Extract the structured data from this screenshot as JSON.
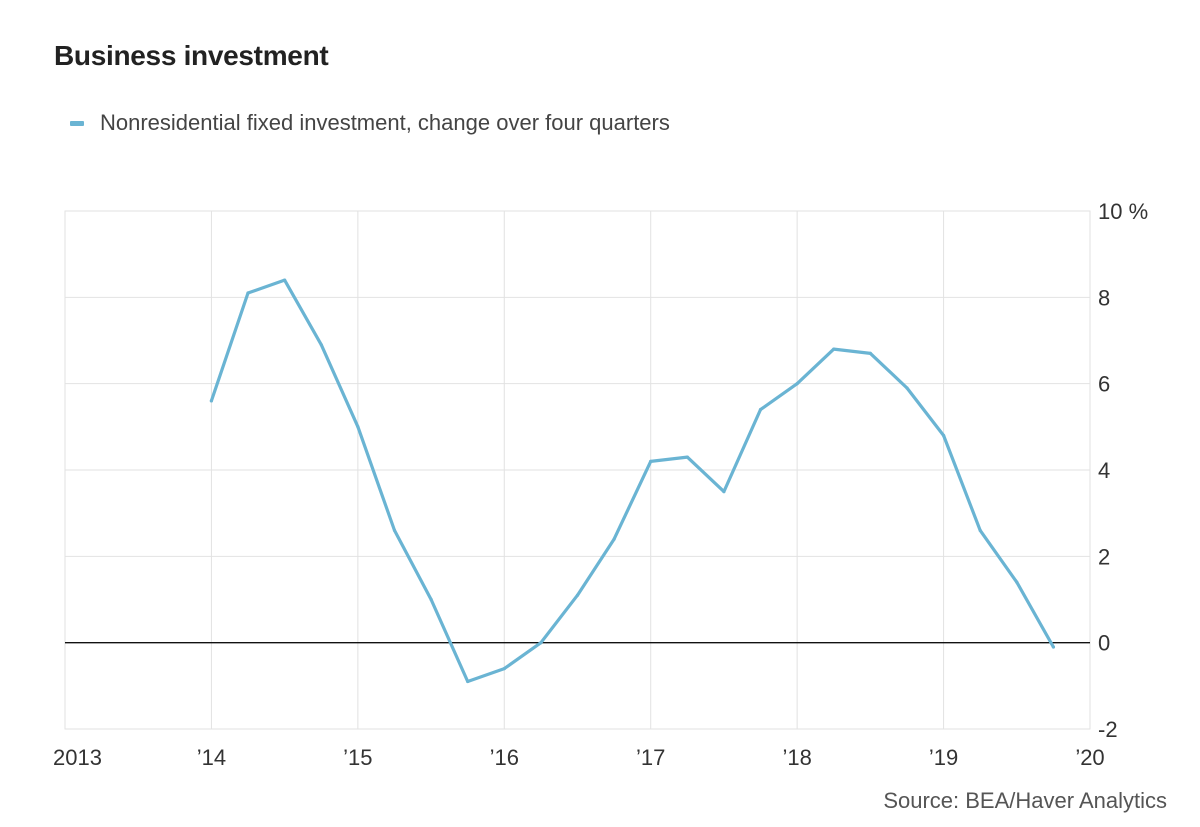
{
  "title": "Business investment",
  "legend": {
    "label": "Nonresidential fixed investment, change over four quarters",
    "color": "#6ab4d3"
  },
  "source": "Source: BEA/Haver Analytics",
  "chart_data": {
    "type": "line",
    "title": "Business investment",
    "xlabel": "",
    "ylabel": "",
    "xlim": [
      2013,
      2020
    ],
    "ylim": [
      -2,
      10
    ],
    "x_ticks": [
      2013,
      2014,
      2015,
      2016,
      2017,
      2018,
      2019,
      2020
    ],
    "x_tick_labels": [
      "2013",
      "’14",
      "’15",
      "’16",
      "’17",
      "’18",
      "’19",
      "’20"
    ],
    "y_ticks": [
      -2,
      0,
      2,
      4,
      6,
      8,
      10
    ],
    "y_tick_labels": [
      "-2",
      "0",
      "2",
      "4",
      "6",
      "8",
      "10 %"
    ],
    "grid": true,
    "zero_line": true,
    "series": [
      {
        "name": "Nonresidential fixed investment, change over four quarters",
        "color": "#6ab4d3",
        "x": [
          2014.0,
          2014.25,
          2014.5,
          2014.75,
          2015.0,
          2015.25,
          2015.5,
          2015.75,
          2016.0,
          2016.25,
          2016.5,
          2016.75,
          2017.0,
          2017.25,
          2017.5,
          2017.75,
          2018.0,
          2018.25,
          2018.5,
          2018.75,
          2019.0,
          2019.25,
          2019.5,
          2019.75
        ],
        "values": [
          5.6,
          8.1,
          8.4,
          6.9,
          5.0,
          2.6,
          1.0,
          -0.9,
          -0.6,
          0.0,
          1.1,
          2.4,
          4.2,
          4.3,
          3.5,
          5.4,
          6.0,
          6.8,
          6.7,
          5.9,
          4.8,
          2.6,
          1.4,
          -0.1
        ]
      }
    ]
  }
}
